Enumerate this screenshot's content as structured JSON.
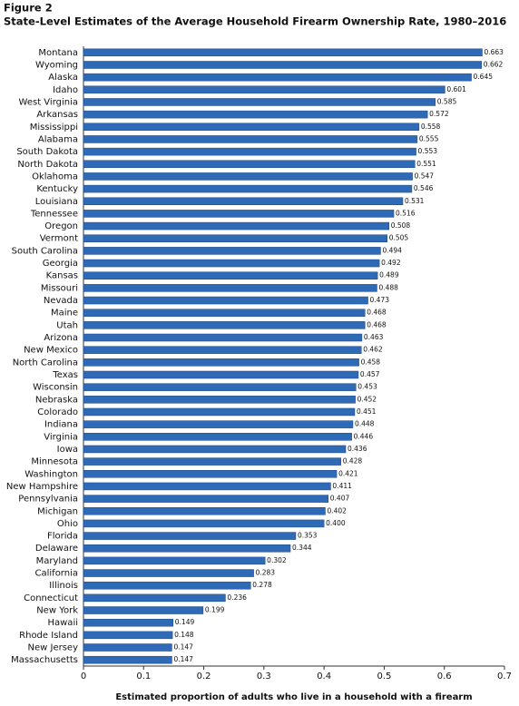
{
  "chart_data": {
    "type": "barh",
    "figure_label": "Figure 2",
    "title": "State-Level Estimates of the Average Household Firearm Ownership Rate, 1980–2016",
    "x_label": "Estimated proportion of adults who live in a household with a firearm",
    "color": "#2f6ab7",
    "categories": [
      "Montana",
      "Wyoming",
      "Alaska",
      "Idaho",
      "West Virginia",
      "Arkansas",
      "Mississippi",
      "Alabama",
      "South Dakota",
      "North Dakota",
      "Oklahoma",
      "Kentucky",
      "Louisiana",
      "Tennessee",
      "Oregon",
      "Vermont",
      "South Carolina",
      "Georgia",
      "Kansas",
      "Missouri",
      "Nevada",
      "Maine",
      "Utah",
      "Arizona",
      "New Mexico",
      "North Carolina",
      "Texas",
      "Wisconsin",
      "Nebraska",
      "Colorado",
      "Indiana",
      "Virginia",
      "Iowa",
      "Minnesota",
      "Washington",
      "New Hampshire",
      "Pennsylvania",
      "Michigan",
      "Ohio",
      "Florida",
      "Delaware",
      "Maryland",
      "California",
      "Illinois",
      "Connecticut",
      "New York",
      "Hawaii",
      "Rhode Island",
      "New Jersey",
      "Massachusetts"
    ],
    "values": [
      0.663,
      0.662,
      0.645,
      0.601,
      0.585,
      0.572,
      0.558,
      0.555,
      0.553,
      0.551,
      0.547,
      0.546,
      0.531,
      0.516,
      0.508,
      0.505,
      0.494,
      0.492,
      0.489,
      0.488,
      0.473,
      0.468,
      0.468,
      0.463,
      0.462,
      0.458,
      0.457,
      0.453,
      0.452,
      0.451,
      0.448,
      0.446,
      0.436,
      0.428,
      0.421,
      0.411,
      0.407,
      0.402,
      0.4,
      0.353,
      0.344,
      0.302,
      0.283,
      0.278,
      0.236,
      0.199,
      0.149,
      0.148,
      0.147,
      0.147
    ],
    "value_labels": [
      "0.663",
      "0.662",
      "0.645",
      "0.601",
      "0.585",
      "0.572",
      "0.558",
      "0.555",
      "0.553",
      "0.551",
      "0.547",
      "0.546",
      "0.531",
      "0.516",
      "0.508",
      "0.505",
      "0.494",
      "0.492",
      "0.489",
      "0.488",
      "0.473",
      "0.468",
      "0.468",
      "0.463",
      "0.462",
      "0.458",
      "0.457",
      "0.453",
      "0.452",
      "0.451",
      "0.448",
      "0.446",
      "0.436",
      "0.428",
      "0.421",
      "0.411",
      "0.407",
      "0.402",
      "0.400",
      "0.353",
      "0.344",
      "0.302",
      "0.283",
      "0.278",
      "0.236",
      "0.199",
      "0.149",
      "0.148",
      "0.147",
      "0.147"
    ],
    "xlim": [
      0,
      0.7
    ],
    "xticks": [
      0,
      0.1,
      0.2,
      0.3,
      0.4,
      0.5,
      0.6,
      0.7
    ]
  }
}
